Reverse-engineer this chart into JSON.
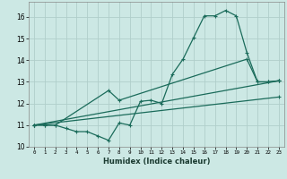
{
  "title": "",
  "xlabel": "Humidex (Indice chaleur)",
  "xlim": [
    -0.5,
    23.5
  ],
  "ylim": [
    10,
    16.7
  ],
  "yticks": [
    10,
    11,
    12,
    13,
    14,
    15,
    16
  ],
  "xticks": [
    0,
    1,
    2,
    3,
    4,
    5,
    6,
    7,
    8,
    9,
    10,
    11,
    12,
    13,
    14,
    15,
    16,
    17,
    18,
    19,
    20,
    21,
    22,
    23
  ],
  "background_color": "#cce8e4",
  "grid_color": "#b0ceca",
  "line_color": "#1a6b5a",
  "line1_x": [
    0,
    1,
    2,
    3,
    4,
    5,
    6,
    7,
    8,
    9,
    10,
    11,
    12,
    13,
    14,
    15,
    16,
    17,
    18,
    19,
    20,
    21,
    22,
    23
  ],
  "line1_y": [
    11.0,
    11.0,
    11.0,
    10.85,
    10.7,
    10.7,
    10.5,
    10.3,
    11.1,
    11.0,
    12.1,
    12.15,
    12.0,
    13.35,
    14.05,
    15.05,
    16.05,
    16.05,
    16.3,
    16.05,
    14.35,
    13.0,
    13.0,
    13.05
  ],
  "line2_x": [
    0,
    1,
    2,
    7,
    8,
    20,
    21,
    22,
    23
  ],
  "line2_y": [
    11.0,
    11.0,
    11.0,
    12.6,
    12.15,
    14.05,
    13.0,
    13.0,
    13.05
  ],
  "line3_x": [
    0,
    23
  ],
  "line3_y": [
    11.0,
    13.05
  ],
  "line4_x": [
    0,
    23
  ],
  "line4_y": [
    11.0,
    12.3
  ],
  "marker_style": "+",
  "marker_size": 3,
  "line_width": 0.9
}
